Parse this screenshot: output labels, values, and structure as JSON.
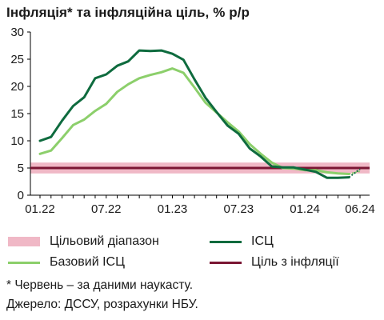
{
  "title": "Інфляція* та інфляційна ціль, % р/р",
  "colors": {
    "cpi": "#0e6b3e",
    "core": "#8ccf6b",
    "target": "#7a1633",
    "band": "#f0b8c6",
    "axis": "#000000"
  },
  "chart_data": {
    "type": "line",
    "x_ticks": [
      "01.22",
      "07.22",
      "01.23",
      "07.23",
      "01.24",
      "06.24"
    ],
    "ylim": [
      0,
      30
    ],
    "y_ticks": [
      0,
      5,
      10,
      15,
      20,
      25,
      30
    ],
    "x": [
      "01.22",
      "02.22",
      "03.22",
      "04.22",
      "05.22",
      "06.22",
      "07.22",
      "08.22",
      "09.22",
      "10.22",
      "11.22",
      "12.22",
      "01.23",
      "02.23",
      "03.23",
      "04.23",
      "05.23",
      "06.23",
      "07.23",
      "08.23",
      "09.23",
      "10.23",
      "11.23",
      "12.23",
      "01.24",
      "02.24",
      "03.24",
      "04.24",
      "05.24",
      "06.24"
    ],
    "series": [
      {
        "name": "ІСЦ",
        "values": [
          10.0,
          10.7,
          13.7,
          16.4,
          18.0,
          21.5,
          22.2,
          23.8,
          24.6,
          26.6,
          26.5,
          26.6,
          26.0,
          24.9,
          21.3,
          17.9,
          15.3,
          12.8,
          11.3,
          8.6,
          7.1,
          5.3,
          5.1,
          5.1,
          4.7,
          4.3,
          3.2,
          3.2,
          3.3,
          4.8
        ]
      },
      {
        "name": "Базовий ІСЦ",
        "values": [
          7.6,
          8.2,
          10.5,
          12.9,
          13.9,
          15.5,
          16.8,
          19.0,
          20.4,
          21.5,
          22.1,
          22.6,
          23.3,
          22.5,
          19.8,
          17.0,
          15.2,
          13.4,
          11.7,
          9.4,
          7.6,
          6.0,
          5.0,
          4.9,
          4.6,
          4.6,
          4.2,
          4.0,
          3.9,
          4.4
        ]
      }
    ],
    "target_value": 5,
    "target_range": [
      4,
      6
    ]
  },
  "legend": [
    {
      "label": "Цільовий діапазон",
      "key": "band"
    },
    {
      "label": "ІСЦ",
      "key": "cpi"
    },
    {
      "label": "Базовий ІСЦ",
      "key": "core"
    },
    {
      "label": "Ціль з інфляції",
      "key": "target"
    }
  ],
  "notes": {
    "footnote": "* Червень – за даними наукасту.",
    "source": "Джерело: ДССУ, розрахунки НБУ."
  }
}
